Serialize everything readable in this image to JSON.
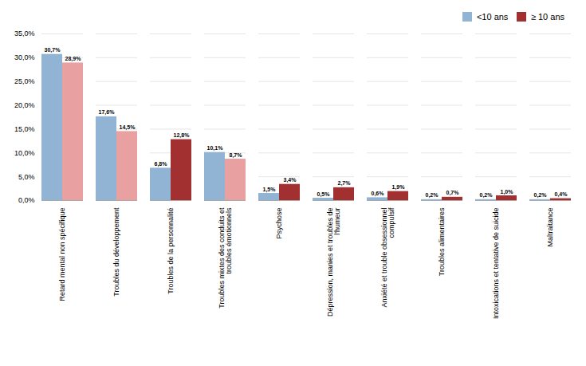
{
  "chart_data": {
    "type": "bar",
    "categories": [
      "Retard mental non spécifique",
      "Troubles du développement",
      "Troubles de la personnalité",
      "Troubles mixtes des conduits et\ntroubles émotionnels",
      "Psychose",
      "Dépression, manies et troubles de\nl'humeur",
      "Anxiété et trouble obsessionnel\ncompulsif",
      "Troubles alimentaires",
      "Intoxications et tentative de suicide",
      "Maltraitance"
    ],
    "series": [
      {
        "name": "<10 ans",
        "color": "#92B4D4",
        "values": [
          30.7,
          17.6,
          6.8,
          10.1,
          1.5,
          0.5,
          0.6,
          0.2,
          0.2,
          0.2
        ],
        "value_labels": [
          "30,7%",
          "17,6%",
          "6,8%",
          "10,1%",
          "1,5%",
          "0,5%",
          "0,6%",
          "0,2%",
          "0,2%",
          "0,2%"
        ]
      },
      {
        "name": "≥ 10 ans",
        "color": "#A33030",
        "colors": [
          "#E8A0A0",
          "#E8A0A0",
          "#A33030",
          "#E8A0A0",
          "#A33030",
          "#A33030",
          "#A33030",
          "#A33030",
          "#A33030",
          "#A33030"
        ],
        "values": [
          28.9,
          14.5,
          12.8,
          8.7,
          3.4,
          2.7,
          1.9,
          0.7,
          1.0,
          0.4
        ],
        "value_labels": [
          "28,9%",
          "14,5%",
          "12,8%",
          "8,7%",
          "3,4%",
          "2,7%",
          "1,9%",
          "0,7%",
          "1,0%",
          "0,4%"
        ]
      }
    ],
    "ylim": [
      0,
      35
    ],
    "yticks": [
      {
        "value": 0,
        "label": "0,0%"
      },
      {
        "value": 5,
        "label": "5,0%"
      },
      {
        "value": 10,
        "label": "10,0%"
      },
      {
        "value": 15,
        "label": "15,0%"
      },
      {
        "value": 20,
        "label": "20,0%"
      },
      {
        "value": 25,
        "label": "25,0%"
      },
      {
        "value": 30,
        "label": "30,0%"
      },
      {
        "value": 35,
        "label": "35,0%"
      }
    ],
    "grid": true,
    "data_labels": true,
    "legend": "upper right"
  }
}
